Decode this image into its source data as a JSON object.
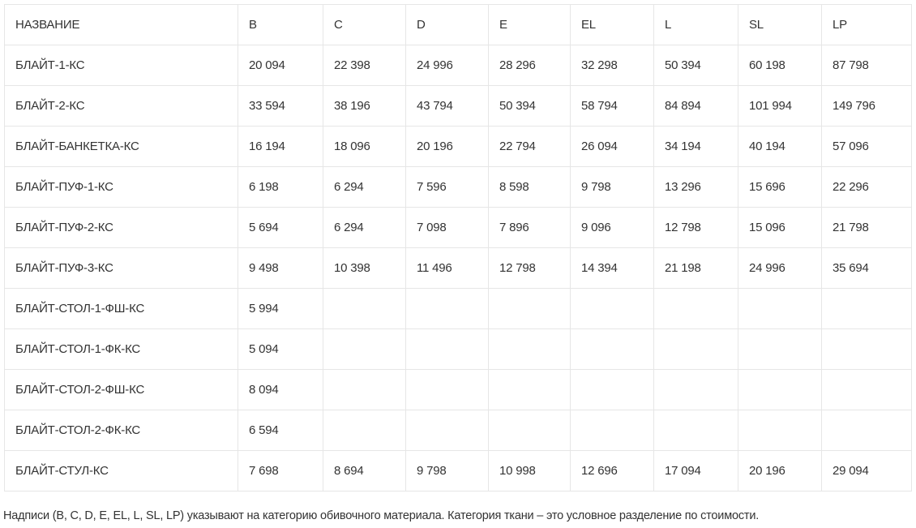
{
  "table": {
    "headers": [
      "НАЗВАНИЕ",
      "B",
      "C",
      "D",
      "E",
      "EL",
      "L",
      "SL",
      "LP"
    ],
    "rows": [
      [
        "БЛАЙТ-1-КС",
        "20 094",
        "22 398",
        "24 996",
        "28 296",
        "32 298",
        "50 394",
        "60 198",
        "87 798"
      ],
      [
        "БЛАЙТ-2-КС",
        "33 594",
        "38 196",
        "43 794",
        "50 394",
        "58 794",
        "84 894",
        "101 994",
        "149 796"
      ],
      [
        "БЛАЙТ-БАНКЕТКА-КС",
        "16 194",
        "18 096",
        "20 196",
        "22 794",
        "26 094",
        "34 194",
        "40 194",
        "57 096"
      ],
      [
        "БЛАЙТ-ПУФ-1-КС",
        "6 198",
        "6 294",
        "7 596",
        "8 598",
        "9 798",
        "13 296",
        "15 696",
        "22 296"
      ],
      [
        "БЛАЙТ-ПУФ-2-КС",
        "5 694",
        "6 294",
        "7 098",
        "7 896",
        "9 096",
        "12 798",
        "15 096",
        "21 798"
      ],
      [
        "БЛАЙТ-ПУФ-3-КС",
        "9 498",
        "10 398",
        "11 496",
        "12 798",
        "14 394",
        "21 198",
        "24 996",
        "35 694"
      ],
      [
        "БЛАЙТ-СТОЛ-1-ФШ-КС",
        "5 994",
        "",
        "",
        "",
        "",
        "",
        "",
        ""
      ],
      [
        "БЛАЙТ-СТОЛ-1-ФК-КС",
        "5 094",
        "",
        "",
        "",
        "",
        "",
        "",
        ""
      ],
      [
        "БЛАЙТ-СТОЛ-2-ФШ-КС",
        "8 094",
        "",
        "",
        "",
        "",
        "",
        "",
        ""
      ],
      [
        "БЛАЙТ-СТОЛ-2-ФК-КС",
        "6 594",
        "",
        "",
        "",
        "",
        "",
        "",
        ""
      ],
      [
        "БЛАЙТ-СТУЛ-КС",
        "7 698",
        "8 694",
        "9 798",
        "10 998",
        "12 696",
        "17 094",
        "20 196",
        "29 094"
      ]
    ]
  },
  "footnote": "Надписи (B, C, D, E, EL, L, SL, LP) указывают на категорию обивочного материала. Категория ткани – это условное разделение по стоимости."
}
